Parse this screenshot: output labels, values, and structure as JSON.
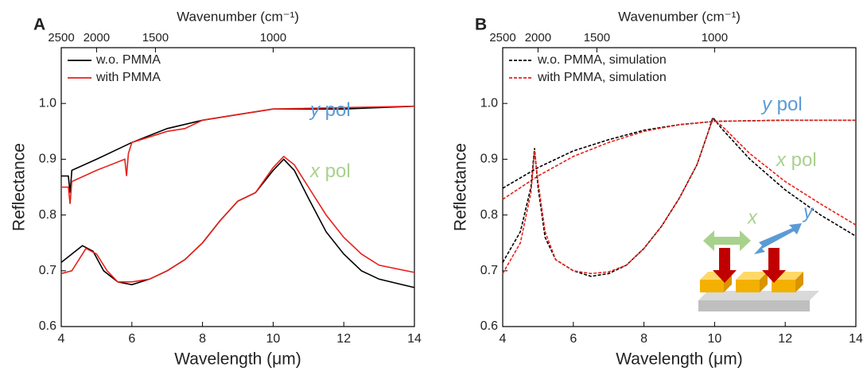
{
  "chart_data": [
    {
      "type": "line",
      "panel": "A",
      "xlabel": "Wavelength (μm)",
      "ylabel": "Reflectance",
      "x2label": "Wavenumber (cm⁻¹)",
      "xlim": [
        4,
        14
      ],
      "xticks": [
        4,
        6,
        8,
        10,
        12,
        14
      ],
      "ylim": [
        0.6,
        1.1
      ],
      "yticks": [
        0.6,
        0.7,
        0.8,
        0.9,
        {
          "value": 1,
          "label": "1.0"
        }
      ],
      "x2ticks": [
        2500,
        2000,
        1500,
        1000
      ],
      "legend": "upper left",
      "dash": false,
      "annotations": [
        {
          "symbol": "y",
          "text": "pol",
          "color": "#5b9bd5"
        },
        {
          "symbol": "x",
          "text": "pol",
          "color": "#a9d18e"
        }
      ],
      "series": [
        {
          "name": "w.o. PMMA",
          "color": "#000000",
          "x": [
            4,
            4.2,
            4.25,
            4.3,
            5,
            6,
            7,
            8,
            9,
            10,
            11,
            12,
            14
          ],
          "values": [
            0.87,
            0.87,
            0.84,
            0.88,
            0.9,
            0.93,
            0.955,
            0.97,
            0.98,
            0.99,
            0.99,
            0.99,
            0.995
          ]
        },
        {
          "name": "with PMMA",
          "color": "#e8201a",
          "x": [
            4,
            4.2,
            4.25,
            4.3,
            5,
            5.8,
            5.85,
            5.9,
            6,
            7,
            7.5,
            8,
            9,
            10,
            14
          ],
          "values": [
            0.85,
            0.85,
            0.82,
            0.86,
            0.88,
            0.9,
            0.87,
            0.91,
            0.93,
            0.95,
            0.955,
            0.97,
            0.98,
            0.99,
            0.995
          ]
        },
        {
          "color": "#000000",
          "x": [
            4,
            4.3,
            4.6,
            4.9,
            5.2,
            5.6,
            6,
            6.5,
            7,
            7.5,
            8,
            8.5,
            9,
            9.5,
            10,
            10.3,
            10.6,
            11,
            11.5,
            12,
            12.5,
            13,
            14
          ],
          "values": [
            0.715,
            0.73,
            0.745,
            0.735,
            0.7,
            0.68,
            0.675,
            0.685,
            0.7,
            0.72,
            0.75,
            0.79,
            0.825,
            0.84,
            0.88,
            0.9,
            0.88,
            0.83,
            0.77,
            0.73,
            0.7,
            0.685,
            0.67
          ]
        },
        {
          "color": "#e8201a",
          "x": [
            4,
            4.3,
            4.7,
            5,
            5.3,
            5.6,
            6,
            6.5,
            7,
            7.5,
            8,
            8.5,
            9,
            9.5,
            10,
            10.3,
            10.6,
            11,
            11.5,
            12,
            12.5,
            13,
            14
          ],
          "values": [
            0.695,
            0.7,
            0.74,
            0.73,
            0.7,
            0.68,
            0.68,
            0.685,
            0.7,
            0.72,
            0.75,
            0.79,
            0.825,
            0.84,
            0.885,
            0.905,
            0.89,
            0.85,
            0.8,
            0.76,
            0.73,
            0.71,
            0.697
          ]
        }
      ]
    },
    {
      "type": "line",
      "panel": "B",
      "xlabel": "Wavelength (μm)",
      "ylabel": "Reflectance",
      "x2label": "Wavenumber (cm⁻¹)",
      "xlim": [
        4,
        14
      ],
      "xticks": [
        4,
        6,
        8,
        10,
        12,
        14
      ],
      "ylim": [
        0.6,
        1.1
      ],
      "yticks": [
        0.6,
        0.7,
        0.8,
        0.9,
        {
          "value": 1,
          "label": "1.0"
        }
      ],
      "x2ticks": [
        2500,
        2000,
        1500,
        1000
      ],
      "legend": "upper left",
      "dash": true,
      "annotations": [
        {
          "symbol": "y",
          "text": "pol",
          "color": "#5b9bd5"
        },
        {
          "symbol": "x",
          "text": "pol",
          "color": "#a9d18e"
        }
      ],
      "inset_labels": [
        {
          "text": "x",
          "color": "#a9d18e"
        },
        {
          "text": "y",
          "color": "#5b9bd5"
        }
      ],
      "series": [
        {
          "name": "w.o. PMMA, simulation",
          "color": "#000000",
          "x": [
            4,
            5,
            6,
            7,
            8,
            9,
            10,
            11,
            12,
            14
          ],
          "values": [
            0.848,
            0.885,
            0.915,
            0.935,
            0.952,
            0.962,
            0.968,
            0.969,
            0.97,
            0.97
          ]
        },
        {
          "name": "with PMMA, simulation",
          "color": "#e8201a",
          "x": [
            4,
            5,
            6,
            7,
            8,
            9,
            10,
            12,
            14
          ],
          "values": [
            0.828,
            0.87,
            0.905,
            0.93,
            0.95,
            0.962,
            0.968,
            0.97,
            0.97
          ]
        },
        {
          "color": "#000000",
          "x": [
            4,
            4.5,
            4.8,
            4.9,
            5,
            5.2,
            5.5,
            6,
            6.5,
            7,
            7.5,
            8,
            8.5,
            9,
            9.5,
            9.8,
            9.95,
            10.2,
            11,
            12,
            13,
            14
          ],
          "values": [
            0.715,
            0.77,
            0.85,
            0.92,
            0.85,
            0.76,
            0.72,
            0.7,
            0.69,
            0.695,
            0.71,
            0.74,
            0.78,
            0.83,
            0.89,
            0.945,
            0.975,
            0.955,
            0.9,
            0.845,
            0.8,
            0.762
          ]
        },
        {
          "color": "#e8201a",
          "x": [
            4,
            4.5,
            4.8,
            4.9,
            5,
            5.2,
            5.5,
            6,
            6.5,
            7,
            7.5,
            8,
            8.5,
            9,
            9.5,
            9.8,
            9.95,
            10.2,
            11,
            12,
            13,
            14
          ],
          "values": [
            0.695,
            0.75,
            0.84,
            0.915,
            0.86,
            0.77,
            0.72,
            0.7,
            0.695,
            0.698,
            0.71,
            0.74,
            0.78,
            0.83,
            0.89,
            0.945,
            0.972,
            0.96,
            0.91,
            0.86,
            0.82,
            0.782
          ]
        }
      ]
    }
  ]
}
